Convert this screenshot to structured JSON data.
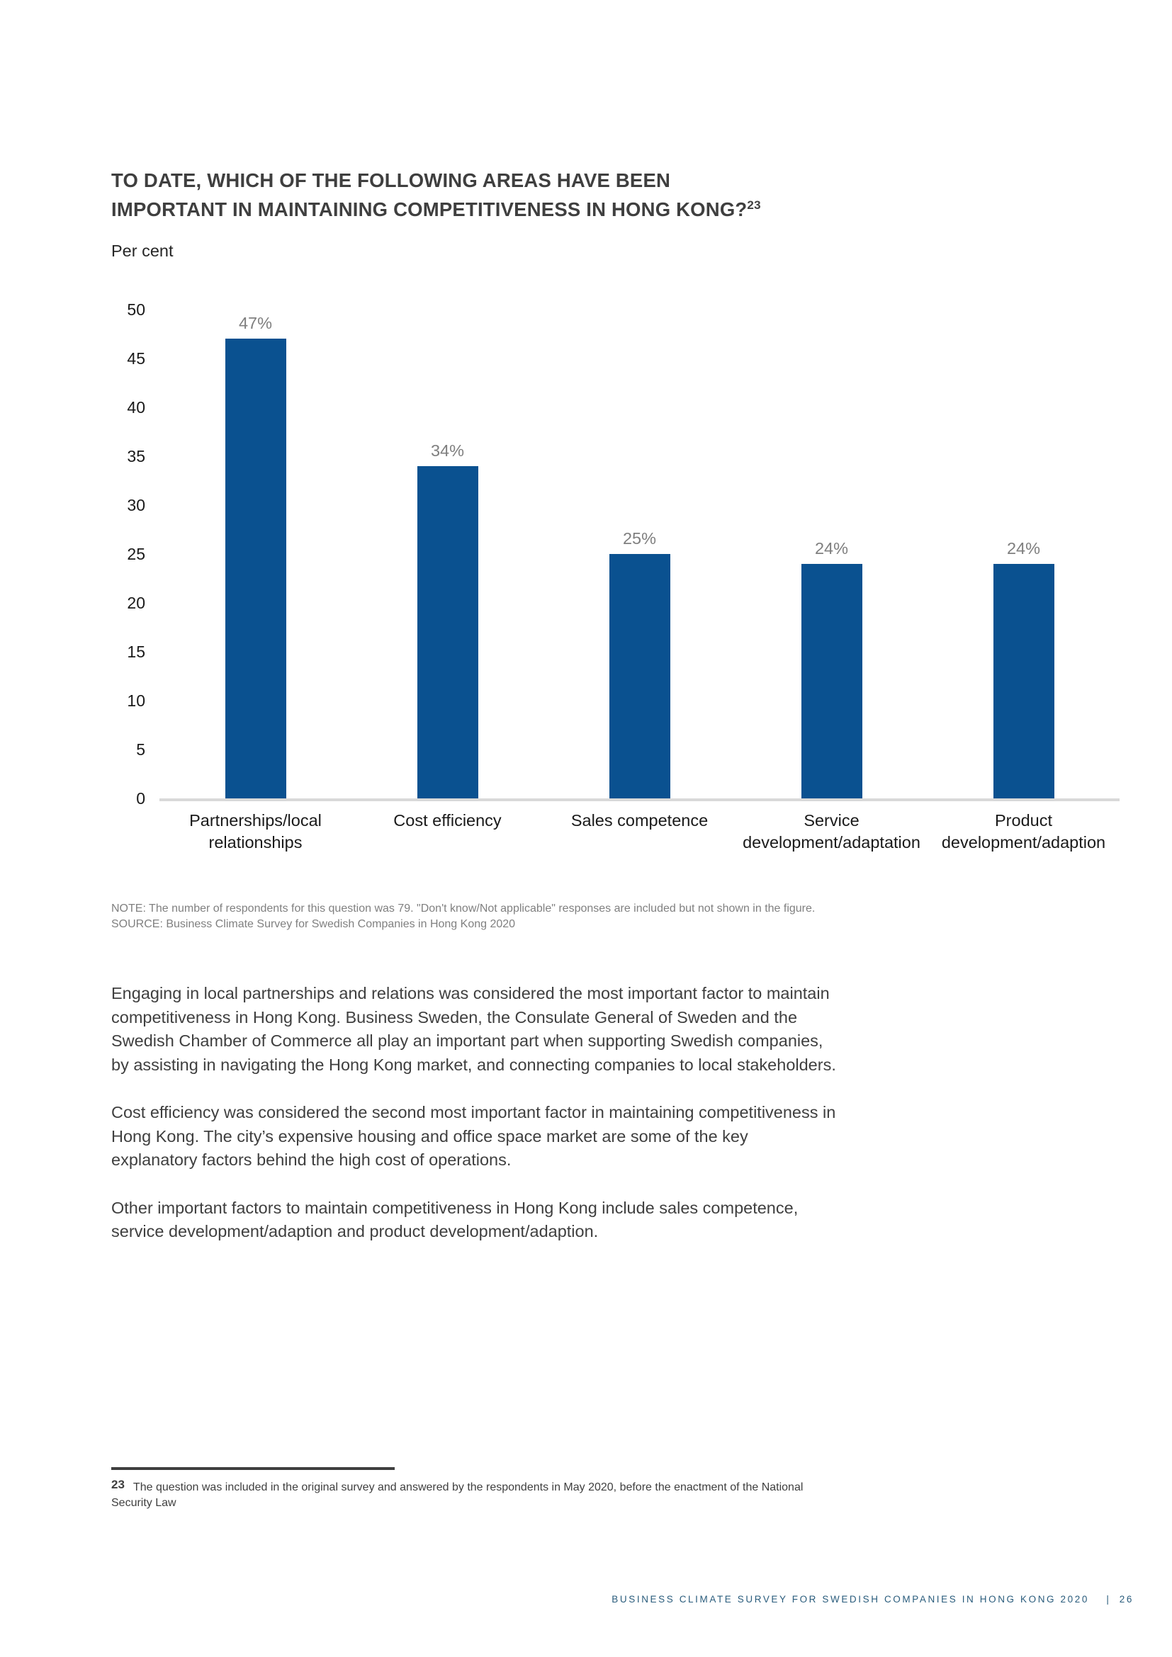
{
  "document": {
    "title_line1": "TO DATE, WHICH OF THE FOLLOWING AREAS HAVE BEEN",
    "title_line2": "IMPORTANT IN MAINTAINING COMPETITIVENESS IN HONG KONG?",
    "title_footnote_ref": "23"
  },
  "chart_data": {
    "type": "bar",
    "unit_label": "Per cent",
    "categories": [
      "Partnerships/local relationships",
      "Cost efficiency",
      "Sales competence",
      "Service development/adaptation",
      "Product development/adaption"
    ],
    "values": [
      47,
      34,
      25,
      24,
      24
    ],
    "data_labels": [
      "47%",
      "34%",
      "25%",
      "24%",
      "24%"
    ],
    "ylim": [
      0,
      50
    ],
    "ytick_interval": 5,
    "grid": false,
    "legend": null,
    "bar_color": "#0a5190",
    "data_label_color": "#7f7f7f",
    "axis_line_color": "#d9d9d9"
  },
  "figure_notes": {
    "note": "NOTE: The number of respondents for this question was 79. \"Don't know/Not applicable\" responses are included but not shown in the figure.",
    "source": "SOURCE: Business Climate Survey for Swedish Companies in Hong Kong 2020"
  },
  "body": {
    "paragraphs": [
      "Engaging in local partnerships and relations was considered the most important factor to maintain competitiveness in Hong Kong. Business Sweden, the Consulate General of Sweden and the Swedish Chamber of Commerce all play an important part when supporting Swedish companies, by assisting in navigating the Hong Kong market, and connecting companies to local stakeholders.",
      "Cost efficiency was considered the second most important factor in maintaining competitiveness in Hong Kong. The city’s expensive housing and office space market are some of the key explanatory factors behind the high cost of operations.",
      "Other important factors to maintain competitiveness in Hong Kong include sales competence, service development/adaption and product development/adaption."
    ]
  },
  "footnote": {
    "number": "23",
    "text": "The question was included in the original survey and answered by the respondents in May 2020, before the enactment of the National Security Law"
  },
  "footer": {
    "report_title": "BUSINESS CLIMATE SURVEY FOR SWEDISH COMPANIES IN HONG KONG 2020",
    "separator": "|",
    "page_number": "26",
    "text_color": "#2a5c7c"
  }
}
